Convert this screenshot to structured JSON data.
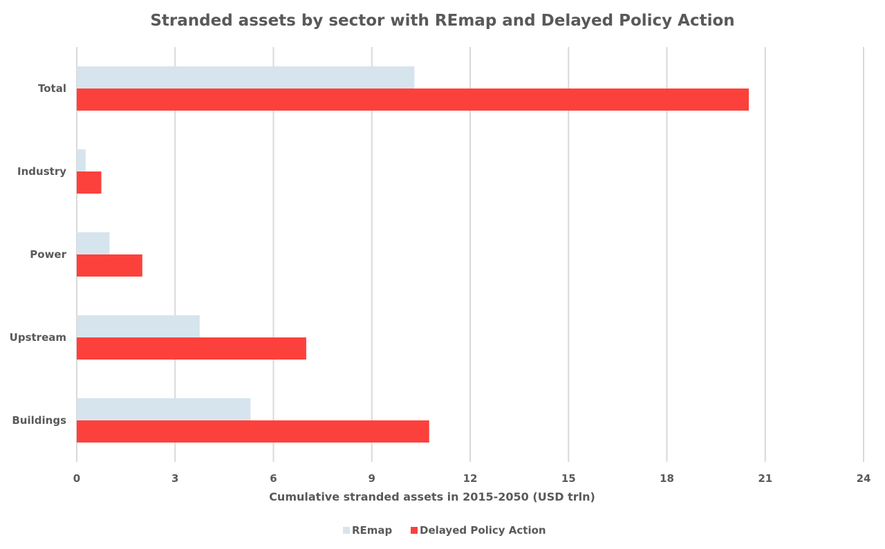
{
  "chart_data": {
    "type": "bar",
    "orientation": "horizontal",
    "title": "Stranded assets by sector with REmap and Delayed Policy Action",
    "xlabel": "Cumulative stranded assets in 2015-2050 (USD trln)",
    "ylabel": "",
    "categories": [
      "Total",
      "Industry",
      "Power",
      "Upstream",
      "Buildings"
    ],
    "series": [
      {
        "name": "REmap",
        "color": "#d6e4ee",
        "values": [
          10.3,
          0.27,
          1.0,
          3.75,
          5.3
        ]
      },
      {
        "name": "Delayed Policy Action",
        "color": "#fc413c",
        "values": [
          20.5,
          0.75,
          2.0,
          7.0,
          10.75
        ]
      }
    ],
    "xlim": [
      0,
      24
    ],
    "xticks": [
      0,
      3,
      6,
      9,
      12,
      15,
      18,
      21,
      24
    ],
    "grid": true,
    "legend": "bottom"
  }
}
